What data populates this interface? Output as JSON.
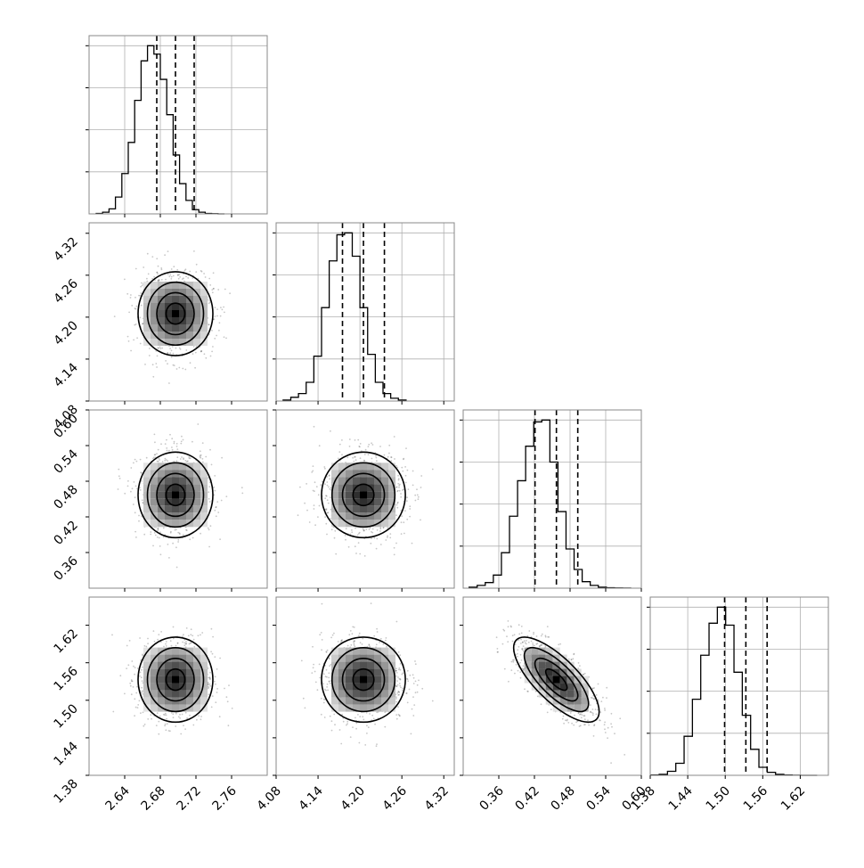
{
  "chart_data": {
    "type": "corner",
    "parameters": 4,
    "grid": true,
    "axis_ranges": [
      [
        2.6,
        2.8
      ],
      [
        4.08,
        4.335
      ],
      [
        0.3,
        0.6
      ],
      [
        1.38,
        1.665
      ]
    ],
    "ticks": [
      [
        {
          "v": 2.64,
          "label": "2.64"
        },
        {
          "v": 2.68,
          "label": "2.68"
        },
        {
          "v": 2.72,
          "label": "2.72"
        },
        {
          "v": 2.76,
          "label": "2.76"
        }
      ],
      [
        {
          "v": 4.08,
          "label": "4.08"
        },
        {
          "v": 4.14,
          "label": "4.14"
        },
        {
          "v": 4.2,
          "label": "4.20"
        },
        {
          "v": 4.26,
          "label": "4.26"
        },
        {
          "v": 4.32,
          "label": "4.32"
        }
      ],
      [
        {
          "v": 0.36,
          "label": "0.36"
        },
        {
          "v": 0.42,
          "label": "0.42"
        },
        {
          "v": 0.48,
          "label": "0.48"
        },
        {
          "v": 0.54,
          "label": "0.54"
        },
        {
          "v": 0.6,
          "label": "0.60"
        }
      ],
      [
        {
          "v": 1.38,
          "label": "1.38"
        },
        {
          "v": 1.44,
          "label": "1.44"
        },
        {
          "v": 1.5,
          "label": "1.50"
        },
        {
          "v": 1.56,
          "label": "1.56"
        },
        {
          "v": 1.62,
          "label": "1.62"
        }
      ]
    ],
    "quantiles": [
      [
        2.676,
        2.697,
        2.718
      ],
      [
        4.175,
        4.205,
        4.235
      ],
      [
        0.421,
        0.457,
        0.493
      ],
      [
        1.499,
        1.533,
        1.567
      ]
    ],
    "histograms": [
      {
        "edges_start": 2.608,
        "bin_width": 0.0072,
        "counts": [
          0.5,
          2,
          6,
          20,
          48,
          85,
          135,
          182,
          200,
          190,
          160,
          118,
          70,
          36,
          16,
          5,
          2,
          0.5,
          0.2,
          0
        ]
      },
      {
        "edges_start": 4.09,
        "bin_width": 0.011,
        "counts": [
          1,
          4,
          8,
          20,
          48,
          100,
          150,
          178,
          180,
          155,
          100,
          50,
          20,
          8,
          3,
          1
        ]
      },
      {
        "edges_start": 0.31,
        "bin_width": 0.0136,
        "counts": [
          1,
          3,
          6,
          14,
          38,
          77,
          115,
          152,
          178,
          180,
          135,
          82,
          42,
          20,
          7,
          3,
          1,
          0.5,
          0.2,
          0.1
        ]
      },
      {
        "edges_start": 1.381,
        "bin_width": 0.0133,
        "counts": [
          0.3,
          1,
          4,
          12,
          39,
          76,
          120,
          152,
          168,
          150,
          103,
          60,
          26,
          8,
          3,
          1,
          0.3,
          0.1,
          0,
          0
        ]
      }
    ],
    "pairs": [
      {
        "row": 1,
        "col": 0,
        "mean": [
          2.697,
          4.205
        ],
        "sd": [
          0.021,
          0.03
        ],
        "rho": 0.0
      },
      {
        "row": 2,
        "col": 0,
        "mean": [
          2.697,
          0.457
        ],
        "sd": [
          0.021,
          0.036
        ],
        "rho": 0.0
      },
      {
        "row": 2,
        "col": 1,
        "mean": [
          4.205,
          0.457
        ],
        "sd": [
          0.03,
          0.036
        ],
        "rho": 0.0
      },
      {
        "row": 3,
        "col": 0,
        "mean": [
          2.697,
          1.533
        ],
        "sd": [
          0.021,
          0.034
        ],
        "rho": 0.0
      },
      {
        "row": 3,
        "col": 1,
        "mean": [
          4.205,
          1.533
        ],
        "sd": [
          0.03,
          0.034
        ],
        "rho": 0.0
      },
      {
        "row": 3,
        "col": 2,
        "mean": [
          0.457,
          1.533
        ],
        "sd": [
          0.036,
          0.034
        ],
        "rho": -0.75
      }
    ],
    "contour_levels_sigma": [
      0.5,
      1.0,
      1.5,
      2.0
    ],
    "colors": {
      "lines": "#000000",
      "points": "#000000",
      "grid": "#b0b0b0",
      "frame": "#888888"
    }
  }
}
